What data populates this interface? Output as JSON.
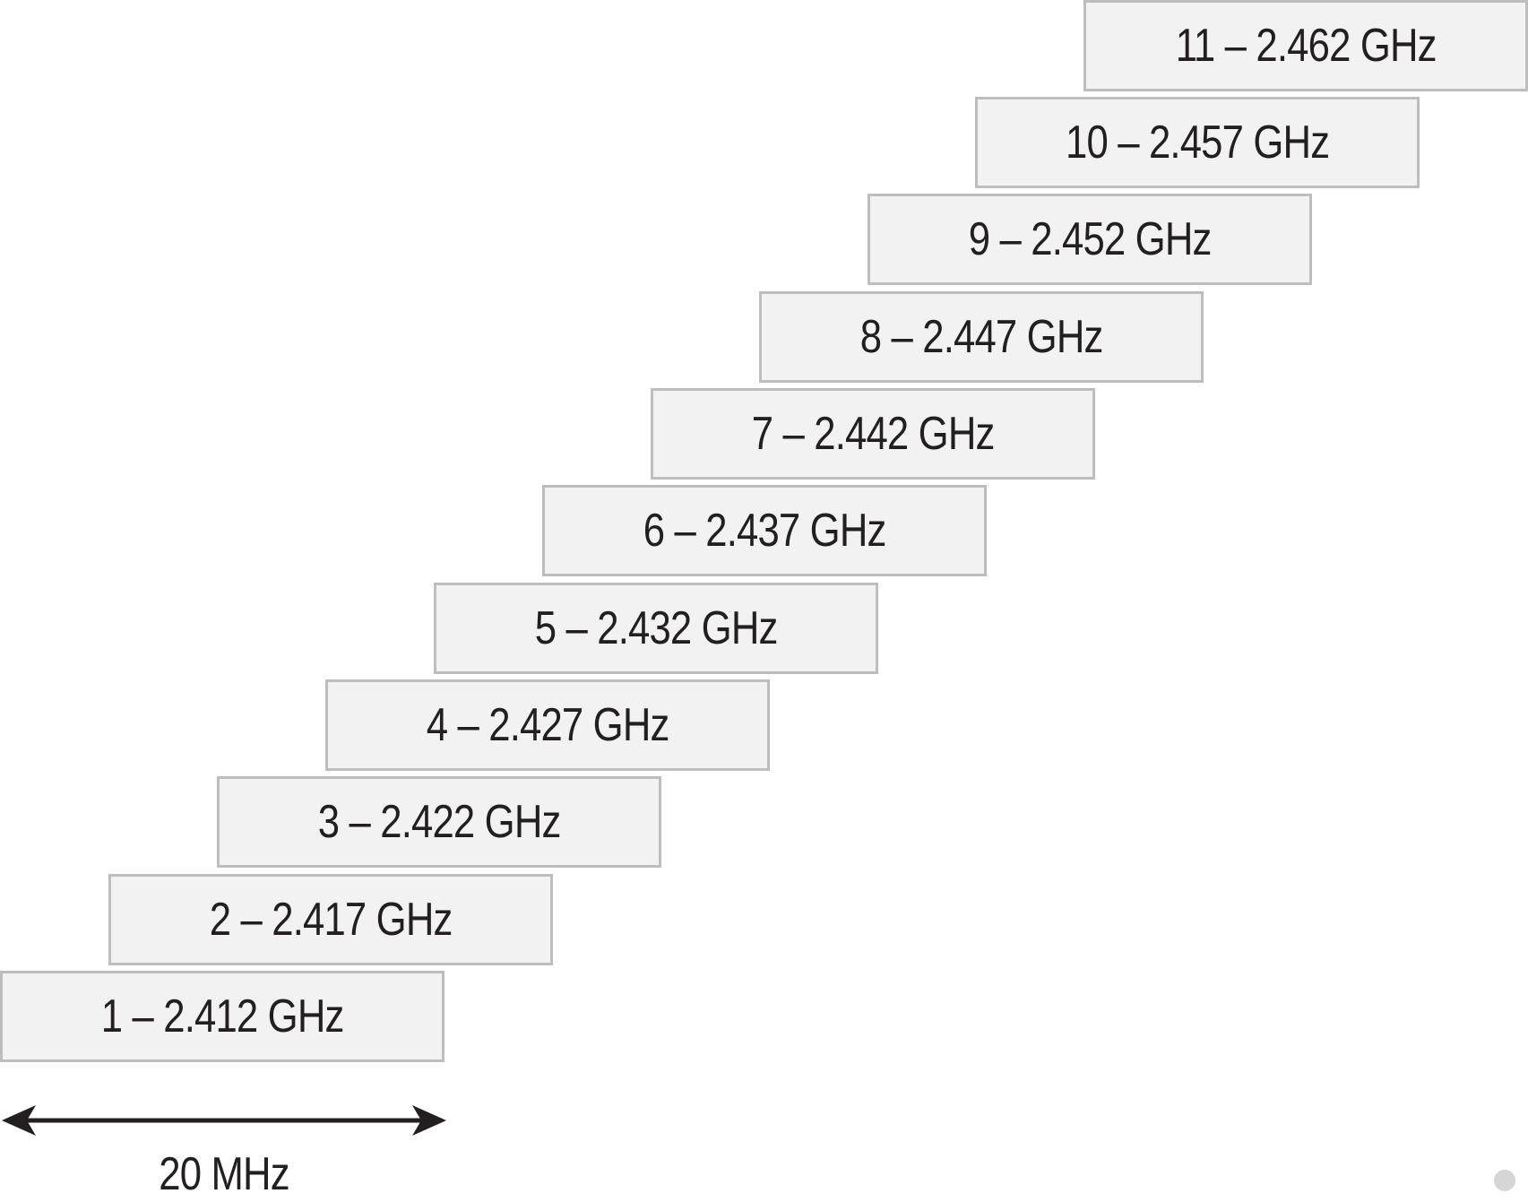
{
  "diagram": {
    "channels": [
      {
        "channel": 1,
        "label": "1 – 2.412 GHz"
      },
      {
        "channel": 2,
        "label": "2 – 2.417 GHz"
      },
      {
        "channel": 3,
        "label": "3 – 2.422 GHz"
      },
      {
        "channel": 4,
        "label": "4 – 2.427 GHz"
      },
      {
        "channel": 5,
        "label": "5 – 2.432 GHz"
      },
      {
        "channel": 6,
        "label": "6 – 2.437 GHz"
      },
      {
        "channel": 7,
        "label": "7 – 2.442 GHz"
      },
      {
        "channel": 8,
        "label": "8 – 2.447 GHz"
      },
      {
        "channel": 9,
        "label": "9 – 2.452 GHz"
      },
      {
        "channel": 10,
        "label": "10 – 2.457 GHz"
      },
      {
        "channel": 11,
        "label": "11 – 2.462 GHz"
      }
    ],
    "width_label": "20 MHz",
    "colors": {
      "box_fill": "#f2f2f2",
      "box_border": "#bdbdbd",
      "text": "#231f20",
      "arrow": "#231f20"
    }
  }
}
